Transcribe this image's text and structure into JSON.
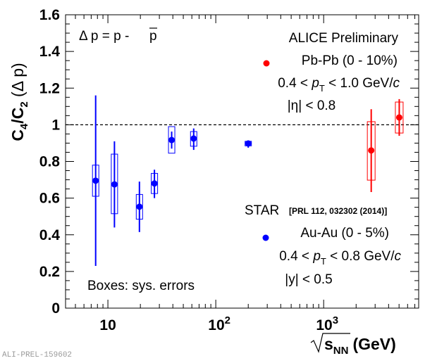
{
  "chart_data": {
    "type": "scatter",
    "title": "",
    "xlabel": "√s_NN (GeV)",
    "xlabel_parts": {
      "root": "s",
      "sub": "NN",
      "unit": "(GeV)"
    },
    "ylabel": "C4/C2 (Δ p)",
    "ylabel_parts": {
      "c": "C",
      "sub4": "4",
      "slash": "/",
      "sub2": "2",
      "rest": " (Δ p)"
    },
    "xscale": "log",
    "xlim": [
      4.05,
      7600
    ],
    "ylim": [
      0,
      1.6
    ],
    "yticks": [
      0,
      0.2,
      0.4,
      0.6,
      0.8,
      1,
      1.2,
      1.4,
      1.6
    ],
    "ytick_labels": [
      "0",
      "0.2",
      "0.4",
      "0.6",
      "0.8",
      "1",
      "1.2",
      "1.4",
      "1.6"
    ],
    "xticks_major": [
      10,
      100,
      1000
    ],
    "xtick_labels": [
      {
        "base": "10",
        "exp": ""
      },
      {
        "base": "10",
        "exp": "2"
      },
      {
        "base": "10",
        "exp": "3"
      }
    ],
    "reference_line": {
      "y": 1,
      "style": "dashed"
    },
    "grid": false,
    "series": [
      {
        "name": "STAR Au-Au (0 - 5%)",
        "color": "#0000ff",
        "points": [
          {
            "x": 7.7,
            "y": 0.695,
            "stat_lo": 0.23,
            "stat_hi": 1.16,
            "sys_lo": 0.61,
            "sys_hi": 0.78
          },
          {
            "x": 11.5,
            "y": 0.675,
            "stat_lo": 0.44,
            "stat_hi": 0.91,
            "sys_lo": 0.515,
            "sys_hi": 0.84
          },
          {
            "x": 19.6,
            "y": 0.553,
            "stat_lo": 0.415,
            "stat_hi": 0.69,
            "sys_lo": 0.485,
            "sys_hi": 0.62
          },
          {
            "x": 27,
            "y": 0.68,
            "stat_lo": 0.6,
            "stat_hi": 0.755,
            "sys_lo": 0.625,
            "sys_hi": 0.735
          },
          {
            "x": 39,
            "y": 0.917,
            "stat_lo": 0.87,
            "stat_hi": 0.963,
            "sys_lo": 0.845,
            "sys_hi": 0.99
          },
          {
            "x": 62.4,
            "y": 0.925,
            "stat_lo": 0.863,
            "stat_hi": 0.98,
            "sys_lo": 0.883,
            "sys_hi": 0.963
          },
          {
            "x": 200,
            "y": 0.898,
            "stat_lo": 0.875,
            "stat_hi": 0.915,
            "sys_lo": 0.885,
            "sys_hi": 0.91
          }
        ]
      },
      {
        "name": "ALICE Pb-Pb (0 - 10%)",
        "color": "#ff0000",
        "points": [
          {
            "x": 2760,
            "y": 0.86,
            "stat_lo": 0.633,
            "stat_hi": 1.085,
            "sys_lo": 0.698,
            "sys_hi": 1.017
          },
          {
            "x": 5020,
            "y": 1.04,
            "stat_lo": 0.94,
            "stat_hi": 1.14,
            "sys_lo": 0.955,
            "sys_hi": 1.124
          }
        ]
      }
    ],
    "annotations": {
      "delta_p": {
        "lhs": "Δ p = p - ",
        "pbar": "p"
      },
      "alice": {
        "title": "ALICE Preliminary",
        "system": "Pb-Pb (0 - 10%)",
        "pt_lo": "0.4 < ",
        "pt_sym": "p",
        "pt_sub": "T",
        "pt_hi": " < 1.0 GeV/",
        "pt_c": "c",
        "eta": "|η| < 0.8"
      },
      "star": {
        "title": "STAR",
        "ref": "[PRL 112, 032302 (2014)]",
        "system": "Au-Au (0 - 5%)",
        "pt_lo": "0.4 < ",
        "pt_sym": "p",
        "pt_sub": "T",
        "pt_hi": " < 0.8 GeV/",
        "pt_c": "c",
        "y": "|y| < 0.5"
      },
      "boxes_note": "Boxes: sys. errors"
    },
    "legend": [
      {
        "label": "Pb-Pb (0 - 10%)",
        "color": "#ff0000",
        "placement": "top-right"
      },
      {
        "label": "Au-Au (0 - 5%)",
        "color": "#0000ff",
        "placement": "bottom-right"
      }
    ]
  },
  "watermark": "ALI-PREL-159602"
}
